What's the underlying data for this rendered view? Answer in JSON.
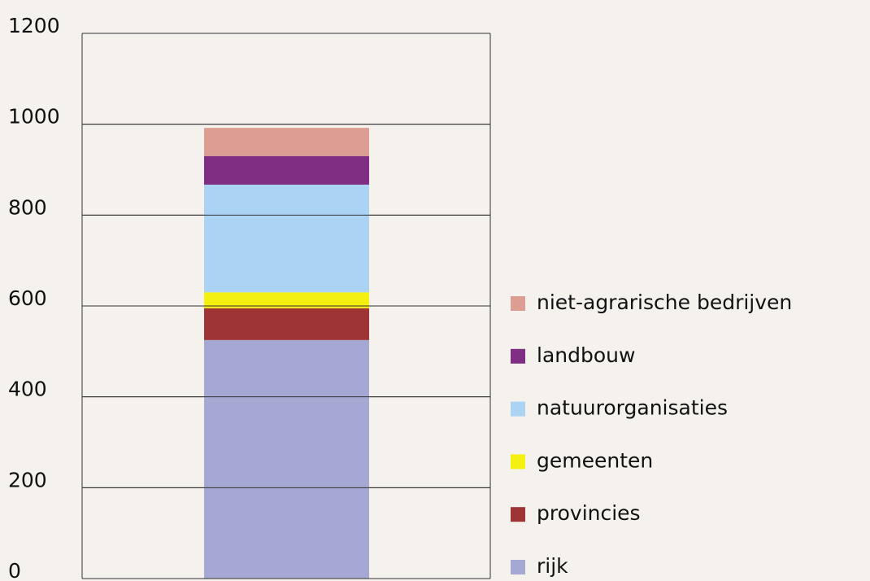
{
  "chart_data": {
    "type": "stacked_bar",
    "categories": [
      null
    ],
    "series": [
      {
        "name": "rijk",
        "color": "#a4a8d2",
        "values": [
          525
        ]
      },
      {
        "name": "provincies",
        "color": "#9e3434",
        "values": [
          70
        ]
      },
      {
        "name": "gemeenten",
        "color": "#f4f00f",
        "values": [
          35
        ]
      },
      {
        "name": "natuurorganisaties",
        "color": "#abd3f3",
        "values": [
          237
        ]
      },
      {
        "name": "landbouw",
        "color": "#7f2e84",
        "values": [
          63
        ]
      },
      {
        "name": "niet-agrarische bedrijven",
        "color": "#dc9d92",
        "values": [
          62
        ]
      }
    ],
    "ylim": [
      0,
      1200
    ],
    "yticks": [
      0,
      200,
      400,
      600,
      800,
      1000,
      1200
    ],
    "grid": true,
    "legend": "right"
  }
}
